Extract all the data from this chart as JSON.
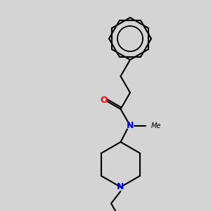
{
  "bg_color": "#d4d4d4",
  "line_color": "#000000",
  "n_color": "#0000ff",
  "o_color": "#ff0000",
  "cl_color": "#00aa00",
  "line_width": 1.5,
  "figsize": [
    3.0,
    3.0
  ],
  "dpi": 100,
  "xlim": [
    0,
    300
  ],
  "ylim": [
    0,
    300
  ]
}
